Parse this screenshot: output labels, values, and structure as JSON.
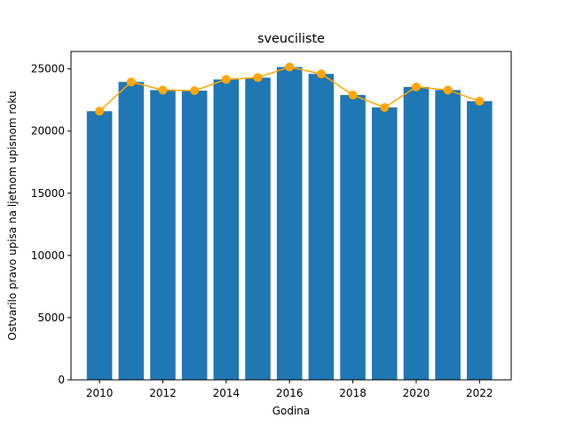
{
  "chart_data": {
    "type": "bar",
    "title": "sveuciliste",
    "xlabel": "Godina",
    "ylabel": "Ostvarilo pravo upisa na ljetnom upisnom roku",
    "x": [
      2010,
      2011,
      2012,
      2013,
      2014,
      2015,
      2016,
      2017,
      2018,
      2019,
      2020,
      2021,
      2022
    ],
    "values": [
      21600,
      23950,
      23300,
      23250,
      24150,
      24300,
      25150,
      24600,
      22900,
      21900,
      23550,
      23300,
      22400
    ],
    "line_values": [
      21600,
      23950,
      23300,
      23250,
      24150,
      24300,
      25150,
      24600,
      22900,
      21900,
      23550,
      23300,
      22400
    ],
    "xticks": [
      "2010",
      "2012",
      "2014",
      "2016",
      "2018",
      "2020",
      "2022"
    ],
    "yticks": [
      "0",
      "5000",
      "10000",
      "15000",
      "20000",
      "25000"
    ],
    "xlim": [
      2009.1,
      2023.0
    ],
    "ylim": [
      0,
      26400
    ],
    "grid": false,
    "legend": "none",
    "bar_color": "#1f77b4",
    "line_color": "#ffa500"
  }
}
